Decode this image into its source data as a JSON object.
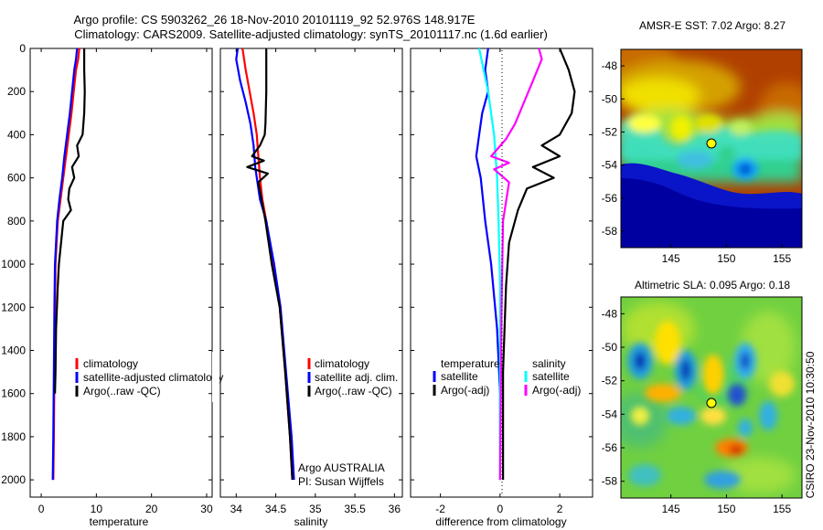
{
  "header": {
    "line1": "Argo profile: CS 5903262_26 18-Nov-2010 20101119_92 52.976S 148.917E",
    "line2": "Climatology: CARS2009. Satellite-adjusted climatology: synTS_20101117.nc (1.6d earlier)"
  },
  "side_label": "CSIRO 23-Nov-2010 10:30:50",
  "chart_data": [
    {
      "type": "line",
      "xlabel": "temperature",
      "xlim": [
        -2,
        31
      ],
      "ylim": [
        0,
        2080
      ],
      "y_reversed": true,
      "xticks": [
        0,
        10,
        20,
        30
      ],
      "yticks": [
        0,
        200,
        400,
        600,
        800,
        1000,
        1200,
        1400,
        1600,
        1800,
        2000
      ],
      "legend": [
        "climatology",
        "satellite-adjusted climatology",
        "Argo(..raw -QC)"
      ],
      "series": [
        {
          "name": "climatology",
          "color": "#ff0000",
          "x": [
            6.9,
            6.7,
            6.3,
            5.9,
            5.5,
            5.0,
            4.5,
            4.0,
            3.5,
            3.0,
            2.8,
            2.6,
            2.5,
            2.4,
            2.3,
            2.2
          ],
          "y": [
            0,
            50,
            100,
            200,
            300,
            400,
            500,
            600,
            700,
            800,
            900,
            1000,
            1200,
            1500,
            1800,
            2000
          ]
        },
        {
          "name": "satellite-adjusted climatology",
          "color": "#0000ff",
          "x": [
            6.5,
            6.3,
            6.0,
            5.6,
            5.2,
            4.7,
            4.2,
            3.8,
            3.3,
            2.9,
            2.7,
            2.5,
            2.4,
            2.3,
            2.2,
            2.1
          ],
          "y": [
            0,
            50,
            100,
            200,
            300,
            400,
            500,
            600,
            700,
            800,
            900,
            1000,
            1200,
            1500,
            1800,
            2000
          ]
        },
        {
          "name": "Argo(..raw -QC)",
          "color": "#000000",
          "x": [
            7.8,
            7.8,
            7.9,
            7.8,
            7.5,
            6.5,
            6.8,
            5.6,
            6.0,
            5.1,
            4.9,
            5.4,
            4.0,
            3.6,
            3.2,
            3.0,
            2.7,
            2.6,
            2.5
          ],
          "y": [
            0,
            100,
            200,
            300,
            400,
            450,
            500,
            550,
            600,
            650,
            700,
            750,
            800,
            900,
            1000,
            1100,
            1300,
            1500,
            1600
          ]
        }
      ]
    },
    {
      "type": "line",
      "xlabel": "salinity",
      "xlim": [
        33.8,
        36.1
      ],
      "ylim": [
        0,
        2080
      ],
      "y_reversed": true,
      "xticks": [
        34,
        34.5,
        35,
        35.5,
        36
      ],
      "yticks": [
        0,
        200,
        400,
        600,
        800,
        1000,
        1200,
        1400,
        1600,
        1800,
        2000
      ],
      "legend": [
        "climatology",
        "satellite adj. clim.",
        "Argo(..raw -QC)"
      ],
      "series": [
        {
          "name": "climatology",
          "color": "#ff0000",
          "x": [
            34.08,
            34.12,
            34.17,
            34.22,
            34.26,
            34.28,
            34.3,
            34.33,
            34.38,
            34.46,
            34.55,
            34.62,
            34.68,
            34.71
          ],
          "y": [
            0,
            100,
            200,
            300,
            400,
            500,
            600,
            700,
            800,
            1000,
            1200,
            1500,
            1800,
            2000
          ]
        },
        {
          "name": "satellite adj. clim.",
          "color": "#0000ff",
          "x": [
            34.02,
            34.0,
            34.05,
            34.12,
            34.18,
            34.22,
            34.24,
            34.3,
            34.38,
            34.48,
            34.56,
            34.63,
            34.7,
            34.73
          ],
          "y": [
            0,
            50,
            150,
            250,
            350,
            450,
            550,
            700,
            800,
            1000,
            1200,
            1500,
            1800,
            2000
          ]
        },
        {
          "name": "Argo(..raw -QC)",
          "color": "#000000",
          "x": [
            34.38,
            34.38,
            34.37,
            34.36,
            34.3,
            34.2,
            34.35,
            34.14,
            34.4,
            34.28,
            34.32,
            34.37,
            34.45,
            34.55,
            34.62,
            34.68,
            34.71
          ],
          "y": [
            0,
            200,
            350,
            400,
            450,
            500,
            520,
            550,
            580,
            620,
            700,
            800,
            1000,
            1200,
            1500,
            1800,
            2000
          ]
        }
      ]
    },
    {
      "type": "line",
      "xlabel": "difference from climatology",
      "xlim": [
        -3,
        3.1
      ],
      "ylim": [
        0,
        2080
      ],
      "y_reversed": true,
      "xticks": [
        -2,
        0,
        2
      ],
      "legend_groups": [
        {
          "title": "temperature",
          "entries": [
            "satellite",
            "Argo(-adj)"
          ]
        },
        {
          "title": "salinity",
          "entries": [
            "satellite",
            "Argo(-adj)"
          ]
        }
      ],
      "series": [
        {
          "name": "temperature satellite",
          "color": "#0000ff",
          "x": [
            -0.4,
            -0.5,
            -0.4,
            -0.6,
            -0.7,
            -0.8,
            -0.65,
            -0.5,
            -0.3,
            -0.1,
            0.0,
            0.0
          ],
          "y": [
            0,
            100,
            200,
            300,
            400,
            500,
            600,
            800,
            1000,
            1300,
            1600,
            2000
          ]
        },
        {
          "name": "temperature Argo(-adj)",
          "color": "#000000",
          "x": [
            2.0,
            2.3,
            2.5,
            2.4,
            2.0,
            1.4,
            2.0,
            1.1,
            1.8,
            0.9,
            0.6,
            0.3,
            0.2,
            0.1,
            0.1
          ],
          "y": [
            0,
            100,
            200,
            300,
            400,
            450,
            500,
            550,
            600,
            650,
            750,
            900,
            1100,
            1500,
            2000
          ]
        },
        {
          "name": "salinity satellite",
          "color": "#00ffff",
          "x": [
            -0.7,
            -0.55,
            -0.4,
            -0.2,
            -0.1,
            -0.05,
            0.0,
            0.0,
            0.0
          ],
          "y": [
            0,
            100,
            200,
            400,
            600,
            800,
            1100,
            1500,
            2000
          ]
        },
        {
          "name": "salinity Argo(-adj)",
          "color": "#ff00ff",
          "x": [
            1.3,
            1.4,
            1.1,
            0.8,
            0.5,
            0.2,
            -0.3,
            0.3,
            -0.2,
            0.3,
            0.1,
            0.05,
            0.0
          ],
          "y": [
            0,
            50,
            150,
            250,
            350,
            420,
            500,
            530,
            560,
            620,
            800,
            1200,
            2000
          ]
        }
      ],
      "annotations": [
        "Argo AUSTRALIA",
        "PI: Susan Wijffels"
      ]
    },
    {
      "type": "heatmap",
      "title": "AMSR-E SST: 7.02 Argo: 8.27",
      "xticks": [
        145,
        150,
        155
      ],
      "yticks": [
        -48,
        -50,
        -52,
        -54,
        -56,
        -58
      ],
      "xlim": [
        140.5,
        156.8
      ],
      "ylim": [
        -59,
        -47
      ],
      "marker": {
        "lon": 148.9,
        "lat": -53.0
      }
    },
    {
      "type": "heatmap",
      "title": "Altimetric SLA: 0.095 Argo: 0.18",
      "xticks": [
        145,
        150,
        155
      ],
      "yticks": [
        -48,
        -50,
        -52,
        -54,
        -56,
        -58
      ],
      "xlim": [
        140.5,
        156.8
      ],
      "ylim": [
        -59,
        -47
      ],
      "marker": {
        "lon": 148.9,
        "lat": -53.0
      }
    }
  ]
}
